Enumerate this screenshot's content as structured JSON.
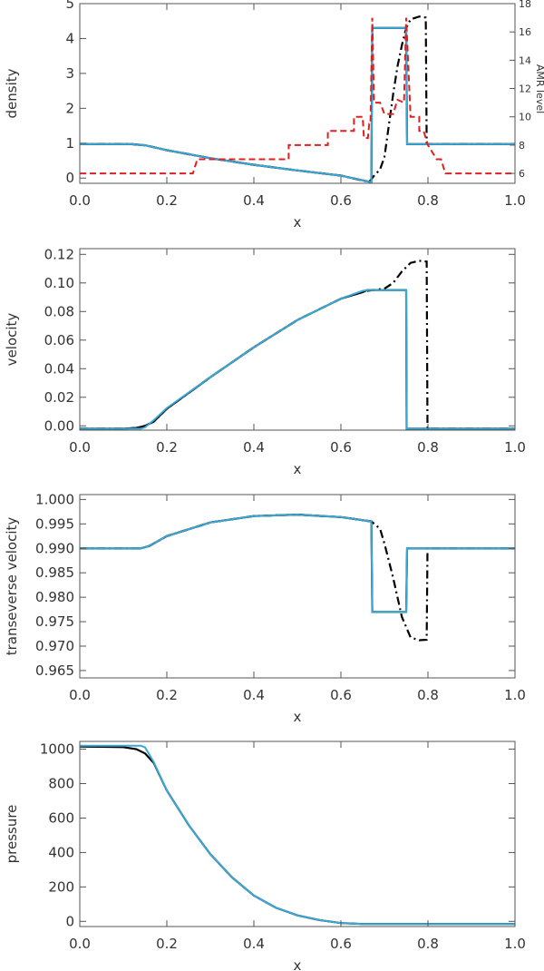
{
  "chart_data": [
    {
      "type": "line",
      "xlabel": "x",
      "ylabel": "density",
      "xlim": [
        0.0,
        1.0
      ],
      "ylim": [
        -0.15,
        5.0
      ],
      "xticks": [
        "0.0",
        "0.2",
        "0.4",
        "0.6",
        "0.8",
        "1.0"
      ],
      "xtick_values": [
        0.0,
        0.2,
        0.4,
        0.6,
        0.8,
        1.0
      ],
      "yticks": [
        "0",
        "1",
        "2",
        "3",
        "4",
        "5"
      ],
      "ytick_values": [
        0,
        1,
        2,
        3,
        4,
        5
      ],
      "y2label": "AMR level",
      "y2lim": [
        5.3,
        18.0
      ],
      "y2ticks": [
        "6",
        "8",
        "10",
        "12",
        "14",
        "16",
        "18"
      ],
      "y2tick_values": [
        6,
        8,
        10,
        12,
        14,
        16,
        18
      ],
      "series": [
        {
          "style": "dashdot",
          "color": "#000000",
          "points": [
            [
              0.0,
              0.97
            ],
            [
              0.12,
              0.97
            ],
            [
              0.15,
              0.94
            ],
            [
              0.2,
              0.8
            ],
            [
              0.3,
              0.57
            ],
            [
              0.4,
              0.38
            ],
            [
              0.5,
              0.22
            ],
            [
              0.6,
              0.07
            ],
            [
              0.665,
              -0.11
            ],
            [
              0.675,
              0.05
            ],
            [
              0.69,
              0.25
            ],
            [
              0.7,
              0.6
            ],
            [
              0.71,
              1.5
            ],
            [
              0.72,
              2.4
            ],
            [
              0.73,
              3.2
            ],
            [
              0.74,
              3.8
            ],
            [
              0.75,
              4.3
            ],
            [
              0.76,
              4.55
            ],
            [
              0.78,
              4.63
            ],
            [
              0.795,
              4.6
            ],
            [
              0.797,
              0.97
            ],
            [
              1.0,
              0.97
            ]
          ]
        },
        {
          "style": "solid",
          "color": "#000000",
          "points": [
            [
              0.0,
              0.97
            ],
            [
              0.12,
              0.97
            ],
            [
              0.15,
              0.94
            ],
            [
              0.2,
              0.8
            ],
            [
              0.3,
              0.57
            ],
            [
              0.4,
              0.38
            ],
            [
              0.5,
              0.22
            ],
            [
              0.6,
              0.07
            ],
            [
              0.67,
              -0.12
            ],
            [
              0.672,
              4.3
            ],
            [
              0.75,
              4.3
            ],
            [
              0.752,
              0.97
            ],
            [
              1.0,
              0.97
            ]
          ]
        },
        {
          "style": "solid",
          "color": "#3aa9d8",
          "points": [
            [
              0.0,
              0.97
            ],
            [
              0.12,
              0.97
            ],
            [
              0.15,
              0.94
            ],
            [
              0.2,
              0.8
            ],
            [
              0.3,
              0.57
            ],
            [
              0.4,
              0.38
            ],
            [
              0.5,
              0.22
            ],
            [
              0.6,
              0.07
            ],
            [
              0.67,
              -0.12
            ],
            [
              0.672,
              4.3
            ],
            [
              0.75,
              4.3
            ],
            [
              0.752,
              0.97
            ],
            [
              1.0,
              0.97
            ]
          ]
        },
        {
          "style": "dashed",
          "color": "#e02020",
          "axis": "right",
          "points": [
            [
              0.0,
              6.0
            ],
            [
              0.26,
              6.0
            ],
            [
              0.27,
              7.0
            ],
            [
              0.48,
              7.0
            ],
            [
              0.48,
              8.0
            ],
            [
              0.57,
              8.0
            ],
            [
              0.57,
              9.0
            ],
            [
              0.63,
              9.0
            ],
            [
              0.63,
              10.0
            ],
            [
              0.65,
              10.0
            ],
            [
              0.653,
              8.5
            ],
            [
              0.662,
              8.5
            ],
            [
              0.665,
              9.5
            ],
            [
              0.668,
              9.5
            ],
            [
              0.672,
              17.0
            ],
            [
              0.676,
              11.0
            ],
            [
              0.69,
              11.0
            ],
            [
              0.7,
              10.2
            ],
            [
              0.72,
              10.2
            ],
            [
              0.73,
              11.2
            ],
            [
              0.745,
              11.0
            ],
            [
              0.75,
              17.0
            ],
            [
              0.76,
              10.0
            ],
            [
              0.76,
              10.0
            ],
            [
              0.78,
              10.0
            ],
            [
              0.78,
              9.0
            ],
            [
              0.79,
              9.0
            ],
            [
              0.8,
              8.0
            ],
            [
              0.82,
              7.0
            ],
            [
              0.83,
              7.0
            ],
            [
              0.84,
              6.0
            ],
            [
              1.0,
              6.0
            ]
          ]
        }
      ]
    },
    {
      "type": "line",
      "xlabel": "x",
      "ylabel": "velocity",
      "xlim": [
        0.0,
        1.0
      ],
      "ylim": [
        -0.003,
        0.124
      ],
      "xticks": [
        "0.0",
        "0.2",
        "0.4",
        "0.6",
        "0.8",
        "1.0"
      ],
      "xtick_values": [
        0.0,
        0.2,
        0.4,
        0.6,
        0.8,
        1.0
      ],
      "yticks": [
        "0.00",
        "0.02",
        "0.04",
        "0.06",
        "0.08",
        "0.10",
        "0.12"
      ],
      "ytick_values": [
        0.0,
        0.02,
        0.04,
        0.06,
        0.08,
        0.1,
        0.12
      ],
      "series": [
        {
          "style": "dashdot",
          "color": "#000000",
          "points": [
            [
              0.0,
              -0.002
            ],
            [
              0.1,
              -0.0019
            ],
            [
              0.13,
              -0.0015
            ],
            [
              0.15,
              0.0
            ],
            [
              0.17,
              0.003
            ],
            [
              0.2,
              0.012
            ],
            [
              0.3,
              0.034
            ],
            [
              0.4,
              0.055
            ],
            [
              0.5,
              0.074
            ],
            [
              0.6,
              0.089
            ],
            [
              0.65,
              0.094
            ],
            [
              0.7,
              0.096
            ],
            [
              0.72,
              0.1
            ],
            [
              0.74,
              0.108
            ],
            [
              0.76,
              0.114
            ],
            [
              0.78,
              0.1155
            ],
            [
              0.797,
              0.115
            ],
            [
              0.799,
              -0.002
            ],
            [
              1.0,
              -0.002
            ]
          ]
        },
        {
          "style": "solid",
          "color": "#000000",
          "points": [
            [
              0.0,
              -0.002
            ],
            [
              0.1,
              -0.0019
            ],
            [
              0.13,
              -0.0015
            ],
            [
              0.15,
              0.0
            ],
            [
              0.17,
              0.003
            ],
            [
              0.2,
              0.012
            ],
            [
              0.3,
              0.034
            ],
            [
              0.4,
              0.055
            ],
            [
              0.5,
              0.074
            ],
            [
              0.6,
              0.089
            ],
            [
              0.65,
              0.0935
            ],
            [
              0.66,
              0.095
            ],
            [
              0.75,
              0.095
            ],
            [
              0.751,
              -0.002
            ],
            [
              1.0,
              -0.002
            ]
          ]
        },
        {
          "style": "solid",
          "color": "#3aa9d8",
          "points": [
            [
              0.0,
              -0.002
            ],
            [
              0.14,
              -0.002
            ],
            [
              0.15,
              -0.001
            ],
            [
              0.17,
              0.004
            ],
            [
              0.2,
              0.0125
            ],
            [
              0.3,
              0.034
            ],
            [
              0.4,
              0.055
            ],
            [
              0.5,
              0.074
            ],
            [
              0.6,
              0.089
            ],
            [
              0.65,
              0.0945
            ],
            [
              0.66,
              0.095
            ],
            [
              0.75,
              0.095
            ],
            [
              0.751,
              -0.002
            ],
            [
              1.0,
              -0.002
            ]
          ]
        }
      ]
    },
    {
      "type": "line",
      "xlabel": "x",
      "ylabel": "transeverse velocity",
      "xlim": [
        0.0,
        1.0
      ],
      "ylim": [
        0.9635,
        1.001
      ],
      "xticks": [
        "0.0",
        "0.2",
        "0.4",
        "0.6",
        "0.8",
        "1.0"
      ],
      "xtick_values": [
        0.0,
        0.2,
        0.4,
        0.6,
        0.8,
        1.0
      ],
      "yticks": [
        "0.965",
        "0.970",
        "0.975",
        "0.980",
        "0.985",
        "0.990",
        "0.995",
        "1.000"
      ],
      "ytick_values": [
        0.965,
        0.97,
        0.975,
        0.98,
        0.985,
        0.99,
        0.995,
        1.0
      ],
      "series": [
        {
          "style": "dashdot",
          "color": "#000000",
          "points": [
            [
              0.0,
              0.99
            ],
            [
              0.14,
              0.99
            ],
            [
              0.16,
              0.9905
            ],
            [
              0.2,
              0.9925
            ],
            [
              0.3,
              0.9953
            ],
            [
              0.4,
              0.9966
            ],
            [
              0.5,
              0.9969
            ],
            [
              0.6,
              0.9964
            ],
            [
              0.67,
              0.9955
            ],
            [
              0.69,
              0.994
            ],
            [
              0.7,
              0.991
            ],
            [
              0.72,
              0.984
            ],
            [
              0.74,
              0.976
            ],
            [
              0.76,
              0.9718
            ],
            [
              0.78,
              0.9712
            ],
            [
              0.797,
              0.9713
            ],
            [
              0.799,
              0.99
            ],
            [
              1.0,
              0.99
            ]
          ]
        },
        {
          "style": "solid",
          "color": "#000000",
          "points": [
            [
              0.0,
              0.99
            ],
            [
              0.14,
              0.99
            ],
            [
              0.16,
              0.9905
            ],
            [
              0.2,
              0.9925
            ],
            [
              0.3,
              0.9953
            ],
            [
              0.4,
              0.9966
            ],
            [
              0.5,
              0.9969
            ],
            [
              0.6,
              0.9964
            ],
            [
              0.67,
              0.9955
            ],
            [
              0.672,
              0.977
            ],
            [
              0.75,
              0.977
            ],
            [
              0.752,
              0.99
            ],
            [
              1.0,
              0.99
            ]
          ]
        },
        {
          "style": "solid",
          "color": "#3aa9d8",
          "points": [
            [
              0.0,
              0.99
            ],
            [
              0.14,
              0.99
            ],
            [
              0.16,
              0.9905
            ],
            [
              0.2,
              0.9925
            ],
            [
              0.3,
              0.9953
            ],
            [
              0.4,
              0.9966
            ],
            [
              0.5,
              0.9969
            ],
            [
              0.6,
              0.9964
            ],
            [
              0.67,
              0.9955
            ],
            [
              0.672,
              0.977
            ],
            [
              0.75,
              0.977
            ],
            [
              0.752,
              0.99
            ],
            [
              1.0,
              0.99
            ]
          ]
        }
      ]
    },
    {
      "type": "line",
      "xlabel": "x",
      "ylabel": "pressure",
      "xlim": [
        0.0,
        1.0
      ],
      "ylim": [
        -30,
        1045
      ],
      "xticks": [
        "0.0",
        "0.2",
        "0.4",
        "0.6",
        "0.8",
        "1.0"
      ],
      "xtick_values": [
        0.0,
        0.2,
        0.4,
        0.6,
        0.8,
        1.0
      ],
      "yticks": [
        "0",
        "200",
        "400",
        "600",
        "800",
        "1000"
      ],
      "ytick_values": [
        0,
        200,
        400,
        600,
        800,
        1000
      ],
      "series": [
        {
          "style": "solid",
          "color": "#000000",
          "points": [
            [
              0.0,
              1015
            ],
            [
              0.1,
              1012
            ],
            [
              0.13,
              1000
            ],
            [
              0.15,
              975
            ],
            [
              0.17,
              920
            ],
            [
              0.2,
              760
            ],
            [
              0.25,
              560
            ],
            [
              0.3,
              390
            ],
            [
              0.35,
              255
            ],
            [
              0.4,
              150
            ],
            [
              0.45,
              80
            ],
            [
              0.5,
              35
            ],
            [
              0.55,
              8
            ],
            [
              0.6,
              -10
            ],
            [
              0.65,
              -15
            ],
            [
              1.0,
              -15
            ]
          ]
        },
        {
          "style": "solid",
          "color": "#3aa9d8",
          "points": [
            [
              0.0,
              1020
            ],
            [
              0.14,
              1020
            ],
            [
              0.15,
              1010
            ],
            [
              0.17,
              925
            ],
            [
              0.2,
              760
            ],
            [
              0.25,
              560
            ],
            [
              0.3,
              390
            ],
            [
              0.35,
              255
            ],
            [
              0.4,
              150
            ],
            [
              0.45,
              80
            ],
            [
              0.5,
              35
            ],
            [
              0.55,
              8
            ],
            [
              0.6,
              -10
            ],
            [
              0.65,
              -15
            ],
            [
              1.0,
              -15
            ]
          ]
        }
      ]
    }
  ]
}
